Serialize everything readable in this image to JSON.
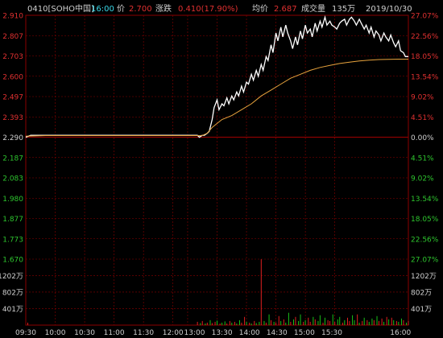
{
  "header": {
    "code_name": "0410[SOHO中国]",
    "time": "16:00",
    "price_label": "价",
    "price": "2.700",
    "change_label": "涨跌",
    "change": "0.410(17.90%)",
    "avg_label": "均价",
    "avg": "2.687",
    "volume_label": "成交量",
    "volume": "135万",
    "date": "2019/10/30"
  },
  "colors": {
    "background": "#000000",
    "grid": "#8b0000",
    "price_line": "#ffffff",
    "avg_line": "#e8a33d",
    "up_text": "#e03030",
    "down_text": "#2ec52e",
    "neutral_text": "#d0d0d0",
    "time_text": "#3ad8e8",
    "vol_up": "#e02020",
    "vol_down": "#18c018"
  },
  "chart_data": {
    "type": "line",
    "title": "0410[SOHO中国]",
    "x_ticks": [
      "09:30",
      "10:00",
      "10:30",
      "11:00",
      "11:30",
      "12:00",
      "13:00",
      "13:30",
      "14:00",
      "14:30",
      "15:00",
      "15:30",
      "16:00"
    ],
    "price_ticks_left": [
      "2.910",
      "2.807",
      "2.703",
      "2.600",
      "2.497",
      "2.393",
      "2.290",
      "2.187",
      "2.083",
      "1.980",
      "1.877",
      "1.773",
      "1.670"
    ],
    "pct_ticks_right": [
      "27.07%",
      "22.56%",
      "18.05%",
      "13.54%",
      "9.02%",
      "4.51%",
      "0.00%",
      "4.51%",
      "9.02%",
      "13.54%",
      "18.05%",
      "22.56%",
      "27.07%"
    ],
    "volume_ticks_left": [
      "1202万",
      "802万",
      "401万"
    ],
    "volume_ticks_right": [
      "1202万",
      "802万",
      "401万"
    ],
    "prev_close": 2.29,
    "ylim": [
      1.67,
      2.91
    ],
    "volume_max": 1603,
    "series": [
      {
        "name": "价",
        "x": [
          0,
          5,
          10,
          20,
          35,
          45,
          60,
          75,
          90,
          105,
          115,
          120,
          135,
          150,
          165,
          175,
          177,
          180,
          182,
          185,
          187,
          190,
          192,
          195,
          197,
          200,
          202,
          205,
          207,
          210,
          212,
          215,
          217,
          220,
          222,
          225,
          227,
          230,
          232,
          235,
          237,
          240,
          242,
          245,
          247,
          250,
          252,
          255,
          257,
          260,
          262,
          265,
          267,
          270,
          272,
          275,
          277,
          280,
          282,
          285,
          287,
          290,
          292,
          295,
          297,
          300,
          302,
          305,
          307,
          310,
          312,
          315,
          317,
          320,
          322,
          325,
          327,
          330,
          332,
          335,
          337,
          340,
          342,
          345,
          347,
          350,
          352,
          355,
          357,
          360,
          362,
          365,
          367,
          370,
          372,
          375,
          377,
          380,
          382,
          385,
          387,
          390
        ],
        "values": [
          2.29,
          2.3,
          2.3,
          2.3,
          2.3,
          2.3,
          2.3,
          2.3,
          2.3,
          2.3,
          2.3,
          2.3,
          2.3,
          2.3,
          2.3,
          2.3,
          2.29,
          2.3,
          2.3,
          2.31,
          2.32,
          2.38,
          2.44,
          2.48,
          2.43,
          2.46,
          2.45,
          2.49,
          2.46,
          2.5,
          2.48,
          2.52,
          2.5,
          2.55,
          2.52,
          2.57,
          2.56,
          2.61,
          2.58,
          2.63,
          2.6,
          2.66,
          2.63,
          2.7,
          2.68,
          2.76,
          2.72,
          2.82,
          2.78,
          2.85,
          2.8,
          2.86,
          2.82,
          2.78,
          2.74,
          2.8,
          2.76,
          2.83,
          2.79,
          2.86,
          2.82,
          2.84,
          2.8,
          2.87,
          2.83,
          2.88,
          2.85,
          2.9,
          2.86,
          2.88,
          2.86,
          2.85,
          2.84,
          2.87,
          2.88,
          2.89,
          2.86,
          2.89,
          2.9,
          2.88,
          2.86,
          2.89,
          2.87,
          2.84,
          2.86,
          2.82,
          2.85,
          2.8,
          2.83,
          2.81,
          2.78,
          2.82,
          2.8,
          2.78,
          2.81,
          2.77,
          2.75,
          2.78,
          2.73,
          2.72,
          2.7,
          2.7
        ]
      },
      {
        "name": "均价",
        "x": [
          0,
          20,
          60,
          120,
          175,
          177,
          180,
          185,
          190,
          195,
          200,
          210,
          220,
          230,
          240,
          250,
          260,
          270,
          280,
          290,
          300,
          310,
          320,
          330,
          340,
          350,
          360,
          370,
          380,
          390
        ],
        "values": [
          2.295,
          2.298,
          2.298,
          2.298,
          2.298,
          2.298,
          2.299,
          2.31,
          2.34,
          2.36,
          2.38,
          2.4,
          2.43,
          2.46,
          2.5,
          2.53,
          2.56,
          2.59,
          2.61,
          2.63,
          2.645,
          2.655,
          2.665,
          2.672,
          2.678,
          2.682,
          2.685,
          2.686,
          2.687,
          2.687
        ]
      }
    ],
    "volume": {
      "x": [
        2,
        175,
        178,
        180,
        183,
        185,
        188,
        190,
        193,
        195,
        198,
        200,
        203,
        205,
        208,
        210,
        213,
        215,
        218,
        220,
        223,
        225,
        228,
        230,
        233,
        235,
        238,
        240,
        243,
        245,
        248,
        250,
        253,
        255,
        258,
        260,
        263,
        265,
        268,
        270,
        273,
        275,
        278,
        280,
        283,
        285,
        288,
        290,
        293,
        295,
        298,
        300,
        303,
        305,
        308,
        310,
        313,
        315,
        318,
        320,
        323,
        325,
        328,
        330,
        333,
        335,
        338,
        340,
        343,
        345,
        348,
        350,
        353,
        355,
        358,
        360,
        363,
        365,
        368,
        370,
        373,
        375,
        378,
        380,
        383,
        385,
        388,
        390
      ],
      "values": [
        60,
        80,
        50,
        100,
        40,
        60,
        120,
        50,
        80,
        110,
        40,
        60,
        90,
        40,
        100,
        60,
        80,
        40,
        120,
        60,
        200,
        80,
        60,
        40,
        100,
        50,
        80,
        1600,
        100,
        60,
        260,
        120,
        80,
        60,
        220,
        100,
        140,
        60,
        300,
        80,
        140,
        200,
        100,
        260,
        80,
        120,
        180,
        80,
        200,
        140,
        100,
        240,
        60,
        180,
        120,
        100,
        260,
        80,
        140,
        200,
        60,
        120,
        180,
        100,
        240,
        120,
        260,
        60,
        100,
        180,
        120,
        80,
        160,
        120,
        220,
        100,
        160,
        80,
        200,
        140,
        180,
        120,
        100,
        80,
        160,
        120,
        60,
        100
      ],
      "direction": [
        "u",
        "u",
        "d",
        "u",
        "d",
        "u",
        "d",
        "u",
        "u",
        "d",
        "u",
        "d",
        "d",
        "u",
        "u",
        "d",
        "u",
        "d",
        "d",
        "u",
        "u",
        "d",
        "u",
        "d",
        "u",
        "d",
        "d",
        "u",
        "d",
        "u",
        "d",
        "u",
        "d",
        "u",
        "u",
        "d",
        "u",
        "d",
        "d",
        "u",
        "d",
        "u",
        "d",
        "d",
        "u",
        "d",
        "u",
        "u",
        "d",
        "u",
        "d",
        "d",
        "u",
        "d",
        "u",
        "u",
        "d",
        "u",
        "d",
        "d",
        "u",
        "d",
        "u",
        "u",
        "d",
        "d",
        "u",
        "d",
        "u",
        "d",
        "u",
        "d",
        "d",
        "u",
        "d",
        "u",
        "u",
        "d",
        "u",
        "d",
        "u",
        "d",
        "u",
        "d",
        "d",
        "u",
        "d",
        "u"
      ]
    }
  }
}
